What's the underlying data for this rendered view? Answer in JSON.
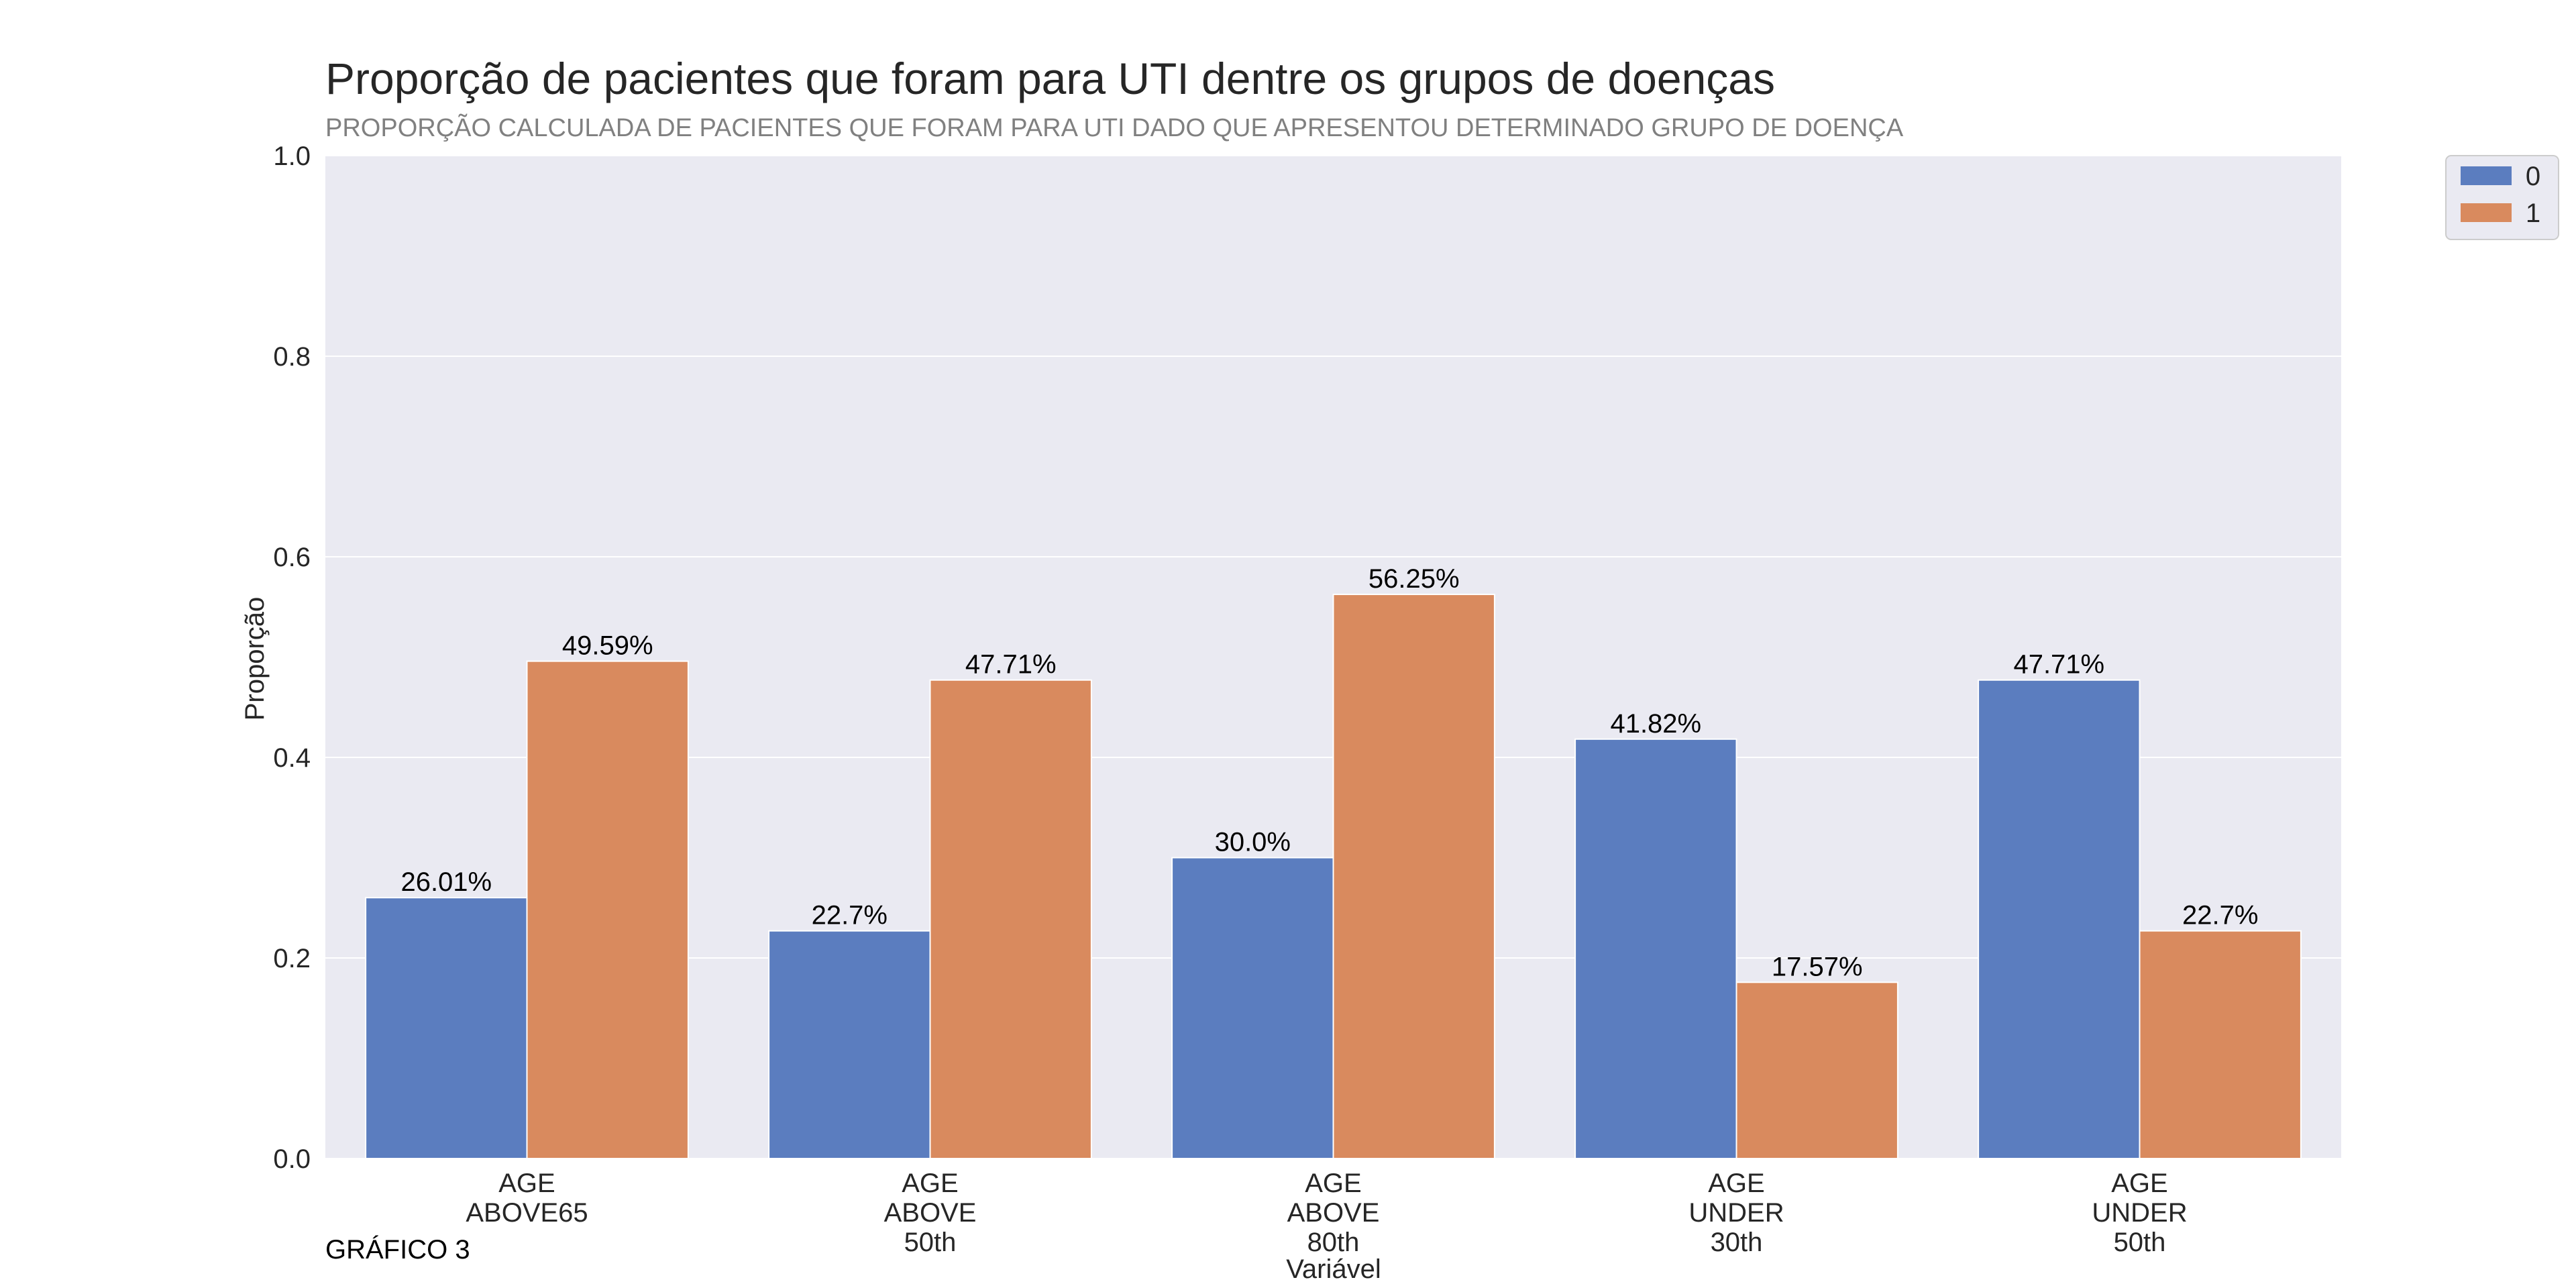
{
  "chart_data": {
    "type": "bar",
    "title": "Proporção de pacientes que foram para UTI dentre os grupos de doenças",
    "subtitle": "PROPORÇÃO CALCULADA DE PACIENTES QUE FORAM PARA UTI DADO QUE APRESENTOU DETERMINADO GRUPO DE DOENÇA",
    "xlabel": "Variável",
    "ylabel": "Proporção",
    "ylim": [
      0,
      1.0
    ],
    "yticks": [
      "0.0",
      "0.2",
      "0.4",
      "0.6",
      "0.8",
      "1.0"
    ],
    "grid": true,
    "legend_position": "outside-top-right",
    "categories": [
      [
        "AGE",
        "ABOVE65"
      ],
      [
        "AGE",
        "ABOVE",
        "50th"
      ],
      [
        "AGE",
        "ABOVE",
        "80th"
      ],
      [
        "AGE",
        "UNDER",
        "30th"
      ],
      [
        "AGE",
        "UNDER",
        "50th"
      ]
    ],
    "series": [
      {
        "name": "0",
        "color": "#5b7dbf",
        "values": [
          0.2601,
          0.227,
          0.3,
          0.4182,
          0.4771
        ],
        "labels": [
          "26.01%",
          "22.7%",
          "30.0%",
          "41.82%",
          "47.71%"
        ]
      },
      {
        "name": "1",
        "color": "#d98a5e",
        "values": [
          0.4959,
          0.4771,
          0.5625,
          0.1757,
          0.227
        ],
        "labels": [
          "49.59%",
          "47.71%",
          "56.25%",
          "17.57%",
          "22.7%"
        ]
      }
    ],
    "footnote": "GRÁFICO 3",
    "background": "#eaeaf2"
  }
}
